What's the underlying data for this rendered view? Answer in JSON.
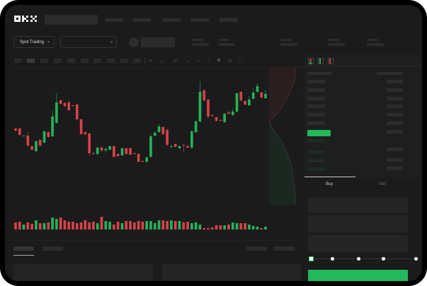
{
  "header": {
    "logo": "OKX"
  },
  "toolbar": {
    "market_select": "Spot Trading"
  },
  "trade_panel": {
    "tabs": [
      {
        "label": "Buy",
        "active": true
      },
      {
        "label": "Sell",
        "active": false
      }
    ],
    "slider_percent": 0
  },
  "colors": {
    "up": "#24b35a",
    "down": "#d9424a",
    "background": "#1b1b1b",
    "frame": "#000000",
    "accent": "#22b85c"
  },
  "chart_data": {
    "type": "candlestick",
    "candles": [
      {
        "o": 118,
        "h": 119,
        "l": 114,
        "c": 115
      },
      {
        "o": 118,
        "h": 119,
        "l": 108,
        "c": 109
      },
      {
        "o": 107,
        "h": 108,
        "l": 107,
        "c": 108
      },
      {
        "o": 108,
        "h": 114,
        "l": 92,
        "c": 94
      },
      {
        "o": 93,
        "h": 94,
        "l": 87,
        "c": 88
      },
      {
        "o": 86,
        "h": 101,
        "l": 84,
        "c": 100
      },
      {
        "o": 102,
        "h": 103,
        "l": 93,
        "c": 94
      },
      {
        "o": 98,
        "h": 115,
        "l": 97,
        "c": 114
      },
      {
        "o": 113,
        "h": 114,
        "l": 105,
        "c": 106
      },
      {
        "o": 107,
        "h": 143,
        "l": 106,
        "c": 135
      },
      {
        "o": 126,
        "h": 168,
        "l": 125,
        "c": 155
      },
      {
        "o": 158,
        "h": 159,
        "l": 152,
        "c": 153
      },
      {
        "o": 154,
        "h": 156,
        "l": 148,
        "c": 150
      },
      {
        "o": 155,
        "h": 158,
        "l": 143,
        "c": 144
      },
      {
        "o": 151,
        "h": 151,
        "l": 149,
        "c": 150
      },
      {
        "o": 152,
        "h": 154,
        "l": 130,
        "c": 131
      },
      {
        "o": 131,
        "h": 132,
        "l": 109,
        "c": 110
      },
      {
        "o": 113,
        "h": 114,
        "l": 108,
        "c": 110
      },
      {
        "o": 111,
        "h": 112,
        "l": 79,
        "c": 83
      },
      {
        "o": 83,
        "h": 85,
        "l": 81,
        "c": 82
      },
      {
        "o": 82,
        "h": 92,
        "l": 80,
        "c": 91
      },
      {
        "o": 91,
        "h": 93,
        "l": 85,
        "c": 87
      },
      {
        "o": 87,
        "h": 91,
        "l": 84,
        "c": 89
      },
      {
        "o": 88,
        "h": 94,
        "l": 87,
        "c": 93
      },
      {
        "o": 93,
        "h": 94,
        "l": 76,
        "c": 78
      },
      {
        "o": 82,
        "h": 83,
        "l": 77,
        "c": 79
      },
      {
        "o": 80,
        "h": 91,
        "l": 79,
        "c": 90
      },
      {
        "o": 90,
        "h": 91,
        "l": 81,
        "c": 82
      },
      {
        "o": 90,
        "h": 91,
        "l": 80,
        "c": 81
      },
      {
        "o": 83,
        "h": 84,
        "l": 81,
        "c": 82
      },
      {
        "o": 82,
        "h": 83,
        "l": 70,
        "c": 71
      },
      {
        "o": 72,
        "h": 73,
        "l": 70,
        "c": 71
      },
      {
        "o": 71,
        "h": 78,
        "l": 70,
        "c": 77
      },
      {
        "o": 78,
        "h": 110,
        "l": 77,
        "c": 107
      },
      {
        "o": 108,
        "h": 114,
        "l": 107,
        "c": 112
      },
      {
        "o": 113,
        "h": 124,
        "l": 112,
        "c": 121
      },
      {
        "o": 120,
        "h": 121,
        "l": 109,
        "c": 110
      },
      {
        "o": 116,
        "h": 118,
        "l": 93,
        "c": 95
      },
      {
        "o": 92,
        "h": 95,
        "l": 90,
        "c": 93
      },
      {
        "o": 96,
        "h": 97,
        "l": 91,
        "c": 92
      },
      {
        "o": 90,
        "h": 94,
        "l": 89,
        "c": 93
      },
      {
        "o": 95,
        "h": 96,
        "l": 85,
        "c": 94
      },
      {
        "o": 93,
        "h": 96,
        "l": 90,
        "c": 91
      },
      {
        "o": 91,
        "h": 116,
        "l": 89,
        "c": 114
      },
      {
        "o": 113,
        "h": 130,
        "l": 112,
        "c": 128
      },
      {
        "o": 128,
        "h": 185,
        "l": 127,
        "c": 170
      },
      {
        "o": 172,
        "h": 174,
        "l": 156,
        "c": 158
      },
      {
        "o": 159,
        "h": 160,
        "l": 132,
        "c": 135
      },
      {
        "o": 137,
        "h": 138,
        "l": 134,
        "c": 136
      },
      {
        "o": 134,
        "h": 135,
        "l": 127,
        "c": 129
      },
      {
        "o": 130,
        "h": 132,
        "l": 128,
        "c": 129
      },
      {
        "o": 127,
        "h": 140,
        "l": 126,
        "c": 139
      },
      {
        "o": 141,
        "h": 144,
        "l": 138,
        "c": 139
      },
      {
        "o": 137,
        "h": 146,
        "l": 136,
        "c": 142
      },
      {
        "o": 142,
        "h": 169,
        "l": 141,
        "c": 168
      },
      {
        "o": 170,
        "h": 171,
        "l": 156,
        "c": 158
      },
      {
        "o": 157,
        "h": 158,
        "l": 151,
        "c": 152
      },
      {
        "o": 151,
        "h": 164,
        "l": 150,
        "c": 159
      },
      {
        "o": 160,
        "h": 175,
        "l": 159,
        "c": 169
      },
      {
        "o": 170,
        "h": 182,
        "l": 169,
        "c": 178
      },
      {
        "o": 169,
        "h": 170,
        "l": 160,
        "c": 162
      },
      {
        "o": 161,
        "h": 173,
        "l": 160,
        "c": 167
      }
    ],
    "volumes": [
      10,
      11,
      7,
      10,
      8,
      13,
      9,
      9,
      10,
      17,
      15,
      17,
      13,
      11,
      11,
      9,
      10,
      13,
      10,
      11,
      9,
      18,
      12,
      11,
      7,
      11,
      9,
      12,
      12,
      10,
      12,
      11,
      12,
      12,
      9,
      13,
      13,
      12,
      13,
      12,
      12,
      10,
      11,
      9,
      10,
      7,
      2,
      2,
      3,
      6,
      6,
      6,
      7,
      10,
      9,
      9,
      9,
      7,
      5,
      4,
      2,
      4
    ],
    "grid": false
  }
}
